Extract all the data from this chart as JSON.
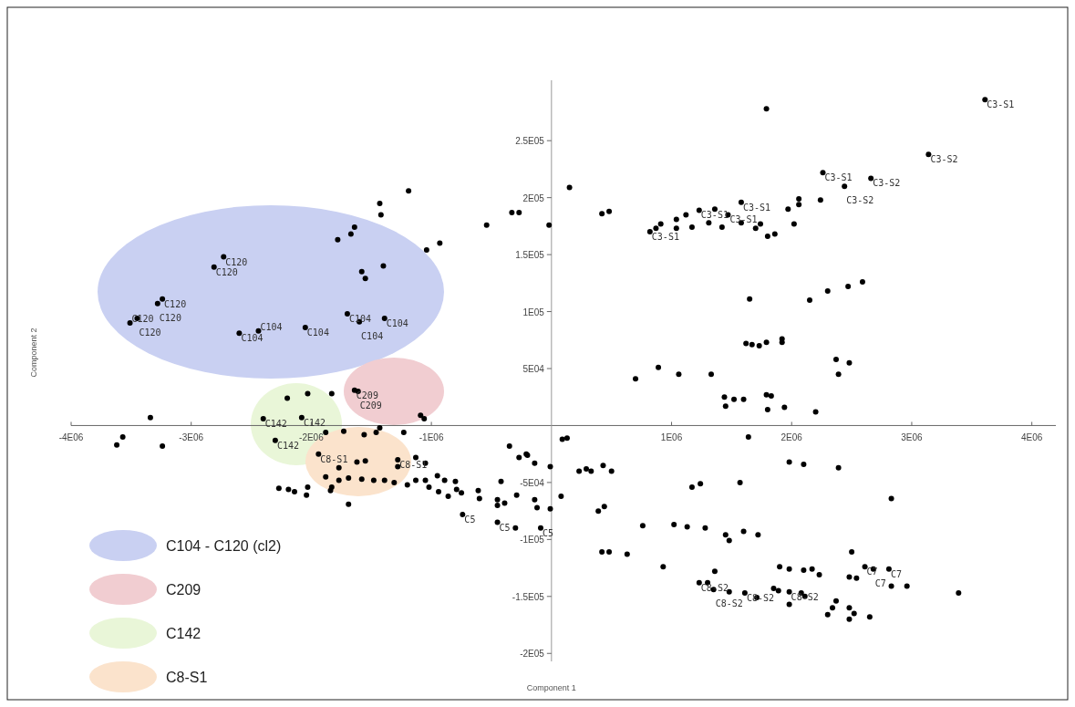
{
  "chart_data": {
    "type": "scatter",
    "xlabel": "Component 1",
    "ylabel": "Component 2",
    "xlim": [
      -4000000,
      4200000
    ],
    "ylim": [
      -207000,
      303000
    ],
    "xticks": [
      {
        "value": -4000000,
        "label": "-4E06"
      },
      {
        "value": -3000000,
        "label": "-3E06"
      },
      {
        "value": -2000000,
        "label": "-2E06"
      },
      {
        "value": -1000000,
        "label": "-1E06"
      },
      {
        "value": 1000000,
        "label": "1E06"
      },
      {
        "value": 2000000,
        "label": "2E06"
      },
      {
        "value": 3000000,
        "label": "3E06"
      },
      {
        "value": 4000000,
        "label": "4E06"
      }
    ],
    "yticks": [
      {
        "value": 250000,
        "label": "2.5E05"
      },
      {
        "value": 200000,
        "label": "2E05"
      },
      {
        "value": 150000,
        "label": "1.5E05"
      },
      {
        "value": 100000,
        "label": "1E05"
      },
      {
        "value": 50000,
        "label": "5E04"
      },
      {
        "value": -50000,
        "label": "-5E04"
      },
      {
        "value": -100000,
        "label": "-1E05"
      },
      {
        "value": -150000,
        "label": "-1.5E05"
      },
      {
        "value": -200000,
        "label": "-2E05"
      }
    ],
    "marker": "circle",
    "series": [
      {
        "color": "#000000",
        "x": [
          -1190000,
          -1430000,
          -1420000,
          -1640000,
          -1670000,
          -1780000,
          -1040000,
          -930000,
          -1400000,
          -1580000,
          -1550000,
          -2730000,
          -2810000,
          -3240000,
          -3280000,
          -3450000,
          -3510000,
          -2600000,
          -2440000,
          -2050000,
          -1700000,
          -1600000,
          -1390000,
          -2030000,
          -2200000,
          -1830000,
          -3340000,
          -1640000,
          -1610000,
          -1090000,
          -1060000,
          -3570000,
          -3620000,
          -3240000,
          -2400000,
          -2080000,
          -1880000,
          -1730000,
          -1560000,
          -1430000,
          -1460000,
          -1230000,
          -2300000,
          -2270000,
          -2190000,
          -2140000,
          -2030000,
          -2040000,
          -1840000,
          -1690000,
          -1940000,
          -1770000,
          -1620000,
          -1550000,
          -1280000,
          -1280000,
          -1880000,
          -1770000,
          -1690000,
          -1580000,
          -1480000,
          -1390000,
          -1310000,
          -1830000,
          -1130000,
          -1050000,
          -1200000,
          -1130000,
          -1050000,
          -1020000,
          -950000,
          -940000,
          -890000,
          -860000,
          -800000,
          -790000,
          -750000,
          -610000,
          -600000,
          -350000,
          -210000,
          -140000,
          -10000,
          -420000,
          -290000,
          -450000,
          -390000,
          -450000,
          -140000,
          -120000,
          -10000,
          80000,
          -740000,
          -450000,
          -300000,
          -90000,
          90000,
          130000,
          -270000,
          -200000,
          230000,
          290000,
          330000,
          430000,
          500000,
          390000,
          440000,
          760000,
          1020000,
          1130000,
          1280000,
          1450000,
          1480000,
          1600000,
          1720000,
          420000,
          480000,
          630000,
          930000,
          1170000,
          1240000,
          1570000,
          1640000,
          1980000,
          2100000,
          2390000,
          2830000,
          1360000,
          1230000,
          1300000,
          1350000,
          1480000,
          1610000,
          1710000,
          1850000,
          1890000,
          1980000,
          1980000,
          2080000,
          2110000,
          1900000,
          1980000,
          2100000,
          2170000,
          2230000,
          2500000,
          2480000,
          2540000,
          2610000,
          2680000,
          2810000,
          2830000,
          2960000,
          3390000,
          2370000,
          2340000,
          2300000,
          2480000,
          2520000,
          2480000,
          2650000,
          3610000,
          1790000,
          3140000,
          2260000,
          2660000,
          2440000,
          150000,
          420000,
          480000,
          2060000,
          2060000,
          2240000,
          1970000,
          2020000,
          1580000,
          1800000,
          1860000,
          1740000,
          1700000,
          910000,
          820000,
          870000,
          1040000,
          1120000,
          1230000,
          1360000,
          1470000,
          1310000,
          1170000,
          1040000,
          1580000,
          1420000,
          -540000,
          -330000,
          -270000,
          -20000,
          1650000,
          2150000,
          2300000,
          2470000,
          2590000,
          1620000,
          1670000,
          1730000,
          1790000,
          1920000,
          1920000,
          2370000,
          2480000,
          2390000,
          890000,
          700000,
          1060000,
          1330000,
          1440000,
          1520000,
          1600000,
          1450000,
          1790000,
          1830000,
          1800000,
          1940000,
          2200000
        ],
        "values": [
          206000,
          195000,
          185000,
          174000,
          168000,
          163000,
          154000,
          160000,
          140000,
          135000,
          129000,
          148000,
          139000,
          111000,
          107000,
          94000,
          90000,
          81000,
          83000,
          86000,
          98000,
          91000,
          94000,
          28000,
          24000,
          28000,
          7000,
          31000,
          30000,
          9000,
          6000,
          -10000,
          -17000,
          -18000,
          6000,
          7000,
          -6000,
          -5000,
          -8000,
          -2000,
          -6000,
          -6000,
          -13000,
          -55000,
          -56000,
          -58000,
          -54000,
          -61000,
          -57000,
          -69000,
          -25000,
          -37000,
          -32000,
          -31000,
          -30000,
          -36000,
          -45000,
          -48000,
          -46000,
          -47000,
          -48000,
          -48000,
          -50000,
          -54000,
          -28000,
          -33000,
          -52000,
          -48000,
          -48000,
          -54000,
          -44000,
          -58000,
          -48000,
          -62000,
          -49000,
          -56000,
          -59000,
          -57000,
          -64000,
          -18000,
          -25000,
          -33000,
          -36000,
          -49000,
          -61000,
          -65000,
          -68000,
          -70000,
          -65000,
          -72000,
          -73000,
          -62000,
          -78000,
          -85000,
          -90000,
          -90000,
          -12000,
          -11000,
          -28000,
          -26000,
          -40000,
          -38000,
          -40000,
          -35000,
          -40000,
          -75000,
          -71000,
          -88000,
          -87000,
          -89000,
          -90000,
          -96000,
          -101000,
          -93000,
          -96000,
          -111000,
          -111000,
          -113000,
          -124000,
          -54000,
          -51000,
          -50000,
          -10000,
          -32000,
          -34000,
          -37000,
          -64000,
          -128000,
          -138000,
          -138000,
          -144000,
          -146000,
          -147000,
          -151000,
          -143000,
          -145000,
          -146000,
          -157000,
          -147000,
          -150000,
          -124000,
          -126000,
          -127000,
          -126000,
          -131000,
          -111000,
          -133000,
          -134000,
          -124000,
          -126000,
          -126000,
          -141000,
          -141000,
          -147000,
          -154000,
          -160000,
          -166000,
          -160000,
          -165000,
          -170000,
          -168000,
          286000,
          278000,
          238000,
          222000,
          217000,
          210000,
          209000,
          186000,
          188000,
          199000,
          194000,
          198000,
          190000,
          177000,
          196000,
          166000,
          168000,
          177000,
          173000,
          177000,
          170000,
          173000,
          181000,
          185000,
          189000,
          190000,
          185000,
          178000,
          174000,
          173000,
          178000,
          174000,
          176000,
          187000,
          187000,
          176000,
          111000,
          110000,
          118000,
          122000,
          126000,
          72000,
          71000,
          70000,
          73000,
          76000,
          73000,
          58000,
          55000,
          45000,
          51000,
          41000,
          45000,
          45000,
          25000,
          23000,
          23000,
          17000,
          27000,
          26000,
          14000,
          16000,
          12000
        ]
      }
    ],
    "annotations": [
      {
        "text": "C120",
        "x": -2730000,
        "y": 148000
      },
      {
        "text": "C120",
        "x": -2810000,
        "y": 139000
      },
      {
        "text": "C120",
        "x": -3240000,
        "y": 111000
      },
      {
        "text": "C120",
        "x": -3280000,
        "y": 107000
      },
      {
        "text": "C120",
        "x": -3450000,
        "y": 94000
      },
      {
        "text": "C120",
        "x": -3510000,
        "y": 90000
      },
      {
        "text": "C104",
        "x": -2600000,
        "y": 81000
      },
      {
        "text": "C104",
        "x": -2440000,
        "y": 83000
      },
      {
        "text": "C104",
        "x": -2050000,
        "y": 86000
      },
      {
        "text": "C104",
        "x": -1700000,
        "y": 98000
      },
      {
        "text": "C104",
        "x": -1600000,
        "y": 91000
      },
      {
        "text": "C104",
        "x": -1390000,
        "y": 94000
      },
      {
        "text": "C209",
        "x": -1640000,
        "y": 31000
      },
      {
        "text": "C209",
        "x": -1610000,
        "y": 30000
      },
      {
        "text": "C142",
        "x": -2400000,
        "y": 6000
      },
      {
        "text": "C142",
        "x": -2080000,
        "y": 7000
      },
      {
        "text": "C142",
        "x": -2300000,
        "y": -13000
      },
      {
        "text": "C8-S1",
        "x": -1940000,
        "y": -25000
      },
      {
        "text": "C8-S1",
        "x": -1280000,
        "y": -30000
      },
      {
        "text": "C5",
        "x": -740000,
        "y": -78000
      },
      {
        "text": "C5",
        "x": -450000,
        "y": -85000
      },
      {
        "text": "C5",
        "x": -90000,
        "y": -90000
      },
      {
        "text": "C8-S2",
        "x": 1230000,
        "y": -138000
      },
      {
        "text": "C8-S2",
        "x": 1350000,
        "y": -144000
      },
      {
        "text": "C8-S2",
        "x": 1610000,
        "y": -147000
      },
      {
        "text": "C8-S2",
        "x": 1980000,
        "y": -146000
      },
      {
        "text": "C7",
        "x": 2610000,
        "y": -124000
      },
      {
        "text": "C7",
        "x": 2680000,
        "y": -126000
      },
      {
        "text": "C7",
        "x": 2810000,
        "y": -126000
      },
      {
        "text": "C3-S1",
        "x": 3610000,
        "y": 286000
      },
      {
        "text": "C3-S2",
        "x": 3140000,
        "y": 238000
      },
      {
        "text": "C3-S1",
        "x": 2260000,
        "y": 222000
      },
      {
        "text": "C3-S2",
        "x": 2660000,
        "y": 217000
      },
      {
        "text": "C3-S2",
        "x": 2440000,
        "y": 210000
      },
      {
        "text": "C3-S1",
        "x": 1580000,
        "y": 196000
      },
      {
        "text": "C3-S1",
        "x": 820000,
        "y": 170000
      },
      {
        "text": "C3-S1",
        "x": 1230000,
        "y": 189000
      },
      {
        "text": "C3-S1",
        "x": 1470000,
        "y": 185000
      },
      "C104 - C120 (cl2)",
      "C209",
      "C142",
      "C8-S1"
    ]
  }
}
